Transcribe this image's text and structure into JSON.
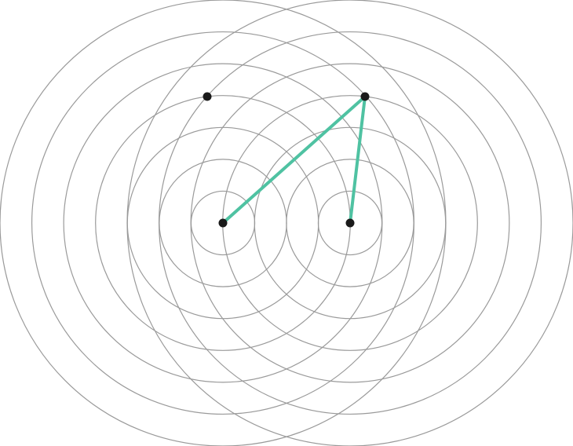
{
  "diagram": {
    "ring_sets": 2,
    "rings_per_set": 7,
    "colors": {
      "ring": "#9a9a9a",
      "path": "#4fc2a2",
      "point": "#1a1a1a",
      "background": "#ffffff"
    }
  }
}
